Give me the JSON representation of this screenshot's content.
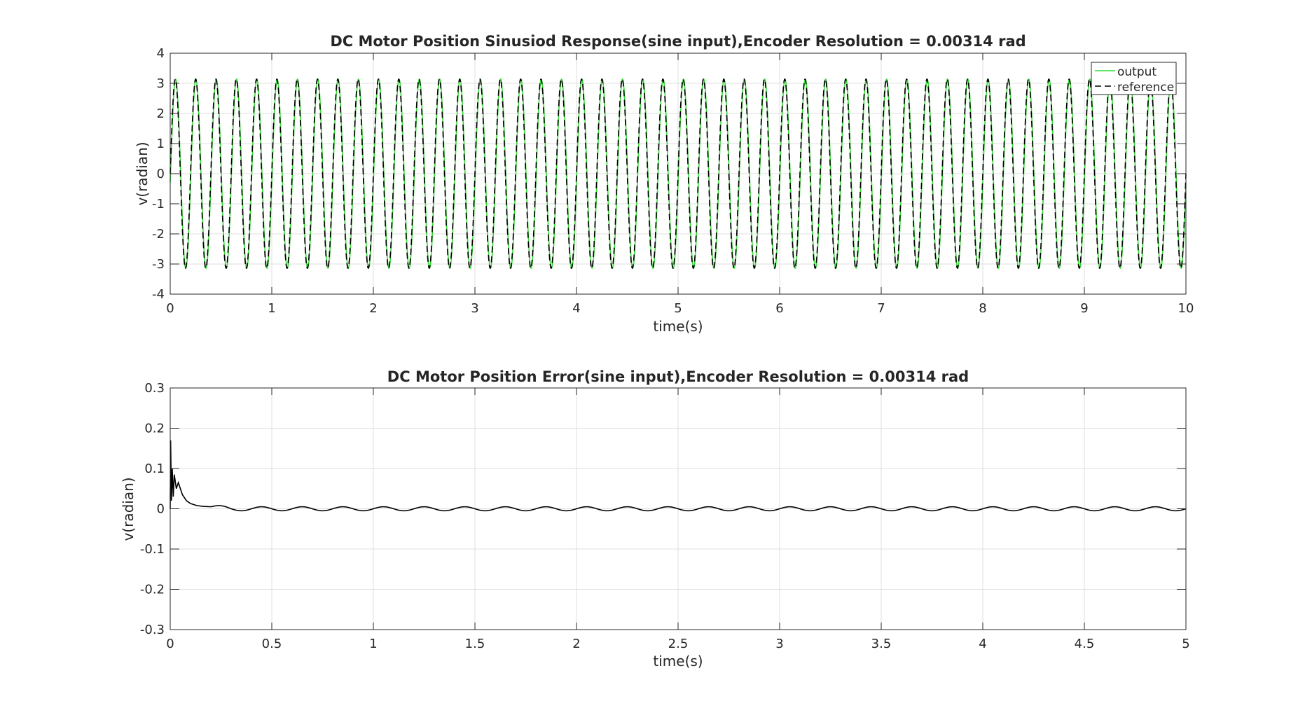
{
  "chart_data": [
    {
      "type": "line",
      "title": "DC Motor Position Sinusiod Response(sine input),Encoder Resolution =  0.00314 rad",
      "xlabel": "time(s)",
      "ylabel": "v(radian)",
      "xlim": [
        0,
        10
      ],
      "ylim": [
        -4,
        4
      ],
      "xticks": [
        "0",
        "1",
        "2",
        "3",
        "4",
        "5",
        "6",
        "7",
        "8",
        "9",
        "10"
      ],
      "yticks": [
        "4",
        "3",
        "2",
        "1",
        "0",
        "-1",
        "-2",
        "-3",
        "-4"
      ],
      "grid": true,
      "legend": {
        "position": "top-right",
        "entries": [
          "output",
          "reference"
        ]
      },
      "series": [
        {
          "name": "output",
          "color": "#33dd33",
          "style": "solid",
          "function": "sine",
          "amplitude": 3.14,
          "frequency_hz": 5,
          "phase_lag_s": 0.003,
          "x_range": [
            0,
            10
          ]
        },
        {
          "name": "reference",
          "color": "#000000",
          "style": "dashed",
          "function": "sine",
          "amplitude": 3.14,
          "frequency_hz": 5,
          "x_range": [
            0,
            10
          ]
        }
      ]
    },
    {
      "type": "line",
      "title": "DC Motor Position Error(sine input),Encoder Resolution =  0.00314 rad",
      "xlabel": "time(s)",
      "ylabel": "v(radian)",
      "xlim": [
        0,
        5
      ],
      "ylim": [
        -0.3,
        0.3
      ],
      "xticks": [
        "0",
        "0.5",
        "1",
        "1.5",
        "2",
        "2.5",
        "3",
        "3.5",
        "4",
        "4.5",
        "5"
      ],
      "yticks": [
        "0.3",
        "0.2",
        "0.1",
        "0",
        "-0.1",
        "-0.2",
        "-0.3"
      ],
      "grid": true,
      "series": [
        {
          "color": "#000000",
          "style": "solid",
          "points": [
            [
              0,
              0.0
            ],
            [
              0.002,
              0.17
            ],
            [
              0.006,
              0.02
            ],
            [
              0.01,
              0.1
            ],
            [
              0.015,
              0.03
            ],
            [
              0.02,
              0.085
            ],
            [
              0.03,
              0.05
            ],
            [
              0.04,
              0.065
            ],
            [
              0.06,
              0.035
            ],
            [
              0.08,
              0.02
            ],
            [
              0.1,
              0.013
            ],
            [
              0.13,
              0.008
            ],
            [
              0.16,
              0.006
            ],
            [
              0.2,
              0.005
            ]
          ],
          "steady_state": {
            "function": "sine",
            "amplitude": 0.005,
            "frequency_hz": 5,
            "x_range": [
              0.2,
              5
            ]
          }
        }
      ]
    }
  ]
}
